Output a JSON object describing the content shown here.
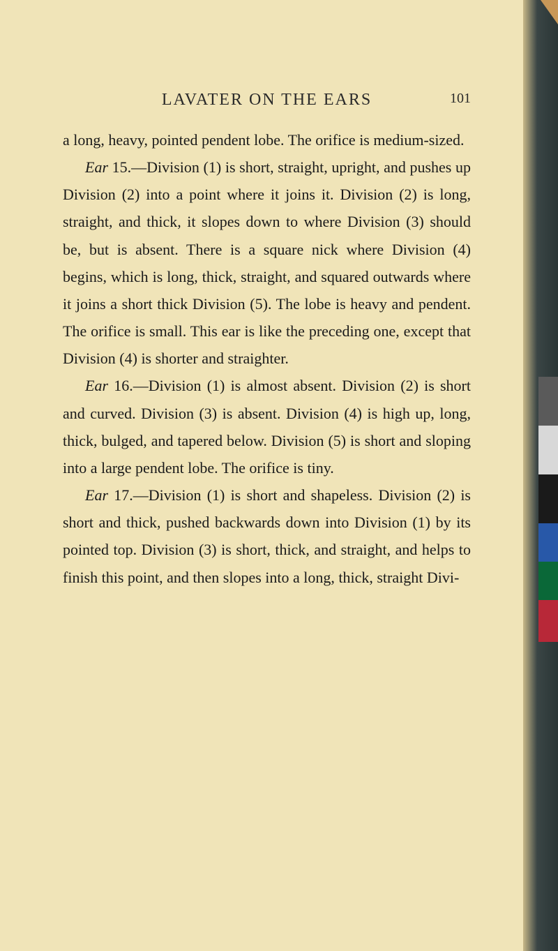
{
  "page": {
    "background_color": "#f0e4b8",
    "body_background": "#e8d9a8",
    "text_color": "#1a1a1a"
  },
  "header": {
    "title": "LAVATER ON THE EARS",
    "page_number": "101",
    "fontsize": 24,
    "letter_spacing": 2
  },
  "body": {
    "fontsize": 22,
    "line_height": 1.78,
    "paragraphs": [
      {
        "text": "a long, heavy, pointed pendent lobe. The orifice is medium-sized.",
        "indent": false
      },
      {
        "prefix_italic": "Ear",
        "text": " 15.—Division (1) is short, straight, upright, and pushes up Division (2) into a point where it joins it. Division (2) is long, straight, and thick, it slopes down to where Division (3) should be, but is absent. There is a square nick where Division (4) begins, which is long, thick, straight, and squared outwards where it joins a short thick Division (5). The lobe is heavy and pendent. The orifice is small. This ear is like the preceding one, except that Division (4) is shorter and straighter.",
        "indent": true
      },
      {
        "prefix_italic": "Ear",
        "text": " 16.—Division (1) is almost absent. Division (2) is short and curved. Division (3) is absent. Division (4) is high up, long, thick, bulged, and tapered below. Division (5) is short and sloping into a large pendent lobe. The orifice is tiny.",
        "indent": true
      },
      {
        "prefix_italic": "Ear",
        "text": " 17.—Division (1) is short and shapeless. Division (2) is short and thick, pushed backwards down into Division (1) by its pointed top. Division (3) is short, thick, and straight, and helps to finish this point, and then slopes into a long, thick, straight Divi-",
        "indent": true
      }
    ]
  },
  "color_bars": [
    {
      "color": "#5a5a5a",
      "height": 70
    },
    {
      "color": "#d8d8d8",
      "height": 70
    },
    {
      "color": "#1a1a1a",
      "height": 70
    },
    {
      "color": "#2858a8",
      "height": 55
    },
    {
      "color": "#0a6838",
      "height": 55
    },
    {
      "color": "#b82838",
      "height": 60
    }
  ],
  "edge": {
    "top_bar_color": "#1a2a2a",
    "right_edge_gradient": "linear-gradient(to right, #c8b888 0%, #3a4545 40%, #2a3535 100%)",
    "corner_color": "#c89858"
  }
}
